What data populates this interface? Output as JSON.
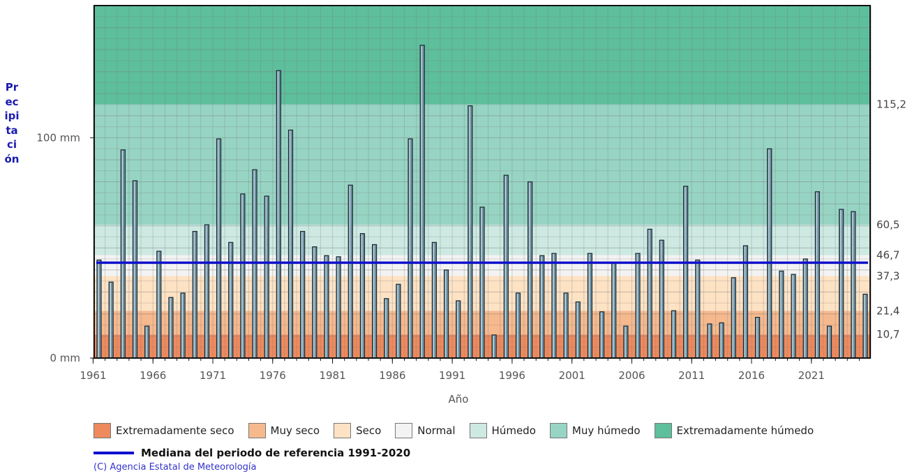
{
  "chart_data": {
    "type": "bar",
    "xlabel": "Año",
    "ylabel": "Precipitación",
    "y_ticks": [
      "0 mm",
      "100 mm"
    ],
    "ylim": [
      0,
      160
    ],
    "x_tick_labels": [
      "1961",
      "1966",
      "1971",
      "1976",
      "1981",
      "1986",
      "1991",
      "1996",
      "2001",
      "2006",
      "2011",
      "2016",
      "2021"
    ],
    "thresholds": [
      {
        "label": "10,7",
        "value": 10.7
      },
      {
        "label": "21,4",
        "value": 21.4
      },
      {
        "label": "37,3",
        "value": 37.3
      },
      {
        "label": "46,7",
        "value": 46.7
      },
      {
        "label": "60,5",
        "value": 60.5
      },
      {
        "label": "115,2",
        "value": 115.2
      }
    ],
    "median_value": 43.3,
    "bands": [
      {
        "name": "Extremadamente seco",
        "color": "#ee8a5d",
        "from": 0,
        "to": 10.7
      },
      {
        "name": "Muy seco",
        "color": "#f6b98e",
        "from": 10.7,
        "to": 21.4
      },
      {
        "name": "Seco",
        "color": "#fde2c4",
        "from": 21.4,
        "to": 37.3
      },
      {
        "name": "Normal",
        "color": "#f3f3f3",
        "from": 37.3,
        "to": 46.7
      },
      {
        "name": "Húmedo",
        "color": "#cde9e2",
        "from": 46.7,
        "to": 60.5
      },
      {
        "name": "Muy húmedo",
        "color": "#97d4c3",
        "from": 60.5,
        "to": 115.2
      },
      {
        "name": "Extremadamente húmedo",
        "color": "#5dbf9c",
        "from": 115.2,
        "to": 160
      }
    ],
    "series": [
      {
        "x": [
          1961,
          1962,
          1963,
          1964,
          1965,
          1966,
          1967,
          1968,
          1969,
          1970,
          1971,
          1972,
          1973,
          1974,
          1975,
          1976,
          1977,
          1978,
          1979,
          1980,
          1981,
          1982,
          1983,
          1984,
          1985,
          1986,
          1987,
          1988,
          1989,
          1990,
          1991,
          1992,
          1993,
          1994,
          1995,
          1996,
          1997,
          1998,
          1999,
          2000,
          2001,
          2002,
          2003,
          2004,
          2005,
          2006,
          2007,
          2008,
          2009,
          2010,
          2011,
          2012,
          2013,
          2014,
          2015,
          2016,
          2017,
          2018,
          2019,
          2020,
          2021,
          2022,
          2023,
          2024,
          2025
        ],
        "values": [
          44.5,
          34.5,
          94.5,
          80.5,
          14.5,
          48.5,
          27.5,
          29.5,
          57.5,
          60.5,
          99.5,
          52.5,
          74.5,
          85.5,
          73.5,
          130.5,
          103.5,
          57.5,
          50.5,
          46.5,
          46.0,
          78.5,
          56.5,
          51.5,
          27.0,
          33.5,
          99.5,
          142.0,
          52.5,
          40.0,
          26.0,
          114.5,
          68.5,
          10.5,
          83.0,
          29.5,
          80.0,
          46.5,
          47.5,
          29.5,
          25.5,
          47.5,
          21.0,
          43.5,
          14.5,
          47.5,
          58.5,
          53.5,
          21.5,
          78.0,
          44.5,
          15.5,
          16.0,
          36.5,
          51.0,
          18.5,
          95.0,
          39.5,
          38.0,
          45.0,
          75.5,
          14.5,
          67.5,
          66.5,
          29.0
        ]
      }
    ]
  },
  "legend": {
    "items": [
      {
        "label": "Extremadamente seco",
        "color": "#ee8a5d"
      },
      {
        "label": "Muy seco",
        "color": "#f6b98e"
      },
      {
        "label": "Seco",
        "color": "#fde2c4"
      },
      {
        "label": "Normal",
        "color": "#f3f3f3"
      },
      {
        "label": "Húmedo",
        "color": "#cde9e2"
      },
      {
        "label": "Muy húmedo",
        "color": "#97d4c3"
      },
      {
        "label": "Extremadamente húmedo",
        "color": "#5dbf9c"
      }
    ],
    "median_label": "Mediana del periodo de referencia 1991-2020",
    "median_color": "#1010cc"
  },
  "credit": "(C) Agencia Estatal de Meteorología"
}
